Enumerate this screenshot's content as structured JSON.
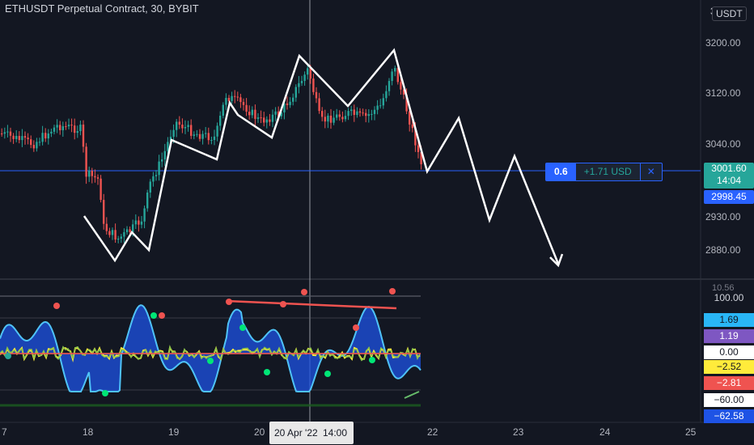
{
  "header": {
    "title": "ETHUSDT Perpetual Contract, 30, BYBIT",
    "currency_prefix": "3",
    "currency": "USDT"
  },
  "price_axis": {
    "labels": [
      "3200.00",
      "3120.00",
      "3040.00",
      "2930.00",
      "2880.00"
    ]
  },
  "last_price": {
    "value": "3001.60",
    "countdown": "14:04",
    "color": "#26a69a"
  },
  "position_line": {
    "price": "2998.45",
    "quantity": "0.6",
    "pnl": "+1.71 USD",
    "close_symbol": "✕",
    "color": "#2962ff"
  },
  "indicator_axis": {
    "top_label": "10.56",
    "labels": [
      {
        "text": "100.00",
        "bg": "transparent",
        "fg": "#d1d4dc"
      },
      {
        "text": "1.69",
        "bg": "#29b6f6",
        "fg": "#131722"
      },
      {
        "text": "1.19",
        "bg": "#7e57c2",
        "fg": "#ffffff"
      },
      {
        "text": "0.00",
        "bg": "#ffffff",
        "fg": "#131722"
      },
      {
        "text": "−2.52",
        "bg": "#ffeb3b",
        "fg": "#131722"
      },
      {
        "text": "−2.81",
        "bg": "#ef5350",
        "fg": "#ffffff"
      },
      {
        "text": "−60.00",
        "bg": "#ffffff",
        "fg": "#131722"
      },
      {
        "text": "−62.58",
        "bg": "#1e53e5",
        "fg": "#ffffff"
      }
    ]
  },
  "time_axis": {
    "labels": [
      "7",
      "18",
      "19",
      "20",
      "22",
      "23",
      "24",
      "25"
    ],
    "crosshair_date": "20 Apr '22",
    "crosshair_time": "14:00"
  },
  "colors": {
    "up": "#26a69a",
    "down": "#ef5350",
    "background": "#131722",
    "drawing": "#ffffff"
  }
}
